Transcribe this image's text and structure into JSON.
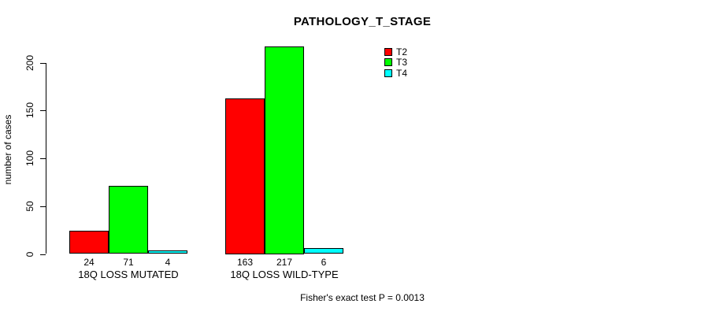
{
  "chart_data": {
    "type": "bar",
    "title": "PATHOLOGY_T_STAGE",
    "ylabel": "number of cases",
    "xlabel": "",
    "categories": [
      "18Q LOSS MUTATED",
      "18Q LOSS WILD-TYPE"
    ],
    "series": [
      {
        "name": "T2",
        "color": "#ff0000",
        "values": [
          24,
          163
        ]
      },
      {
        "name": "T3",
        "color": "#00ff00",
        "values": [
          71,
          217
        ]
      },
      {
        "name": "T4",
        "color": "#00ffff",
        "values": [
          4,
          6
        ]
      }
    ],
    "yticks": [
      0,
      50,
      100,
      150,
      200
    ],
    "ylim": [
      0,
      217
    ],
    "grid": false,
    "legend_position": "right-inside",
    "bar_border_color": "#000000",
    "bar_value_labels_shown": true,
    "annotation": "Fisher's exact test P = 0.0013"
  }
}
